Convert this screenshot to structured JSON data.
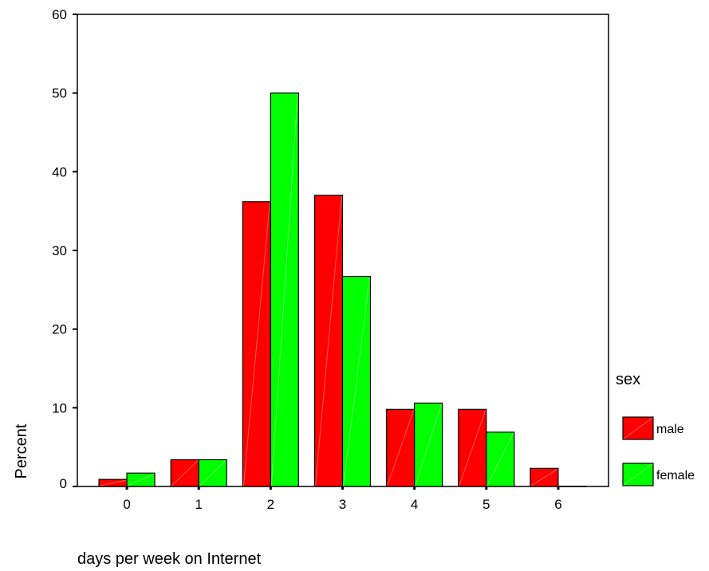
{
  "chart_data": {
    "type": "bar",
    "categories": [
      "0",
      "1",
      "2",
      "3",
      "4",
      "5",
      "6"
    ],
    "series": [
      {
        "name": "male",
        "color": "#ff0000",
        "values": [
          0.9,
          3.4,
          36.2,
          37.0,
          9.8,
          9.8,
          2.3
        ]
      },
      {
        "name": "female",
        "color": "#00ff00",
        "values": [
          1.7,
          3.4,
          50.0,
          26.7,
          10.6,
          6.9,
          0.0
        ]
      }
    ],
    "xlabel": "days per week on Internet",
    "ylabel": "Percent",
    "ylim": [
      0,
      60
    ],
    "yticks": [
      0,
      10,
      20,
      30,
      40,
      50,
      60
    ],
    "legend_title": "sex",
    "legend_position": "right",
    "grid": false
  }
}
